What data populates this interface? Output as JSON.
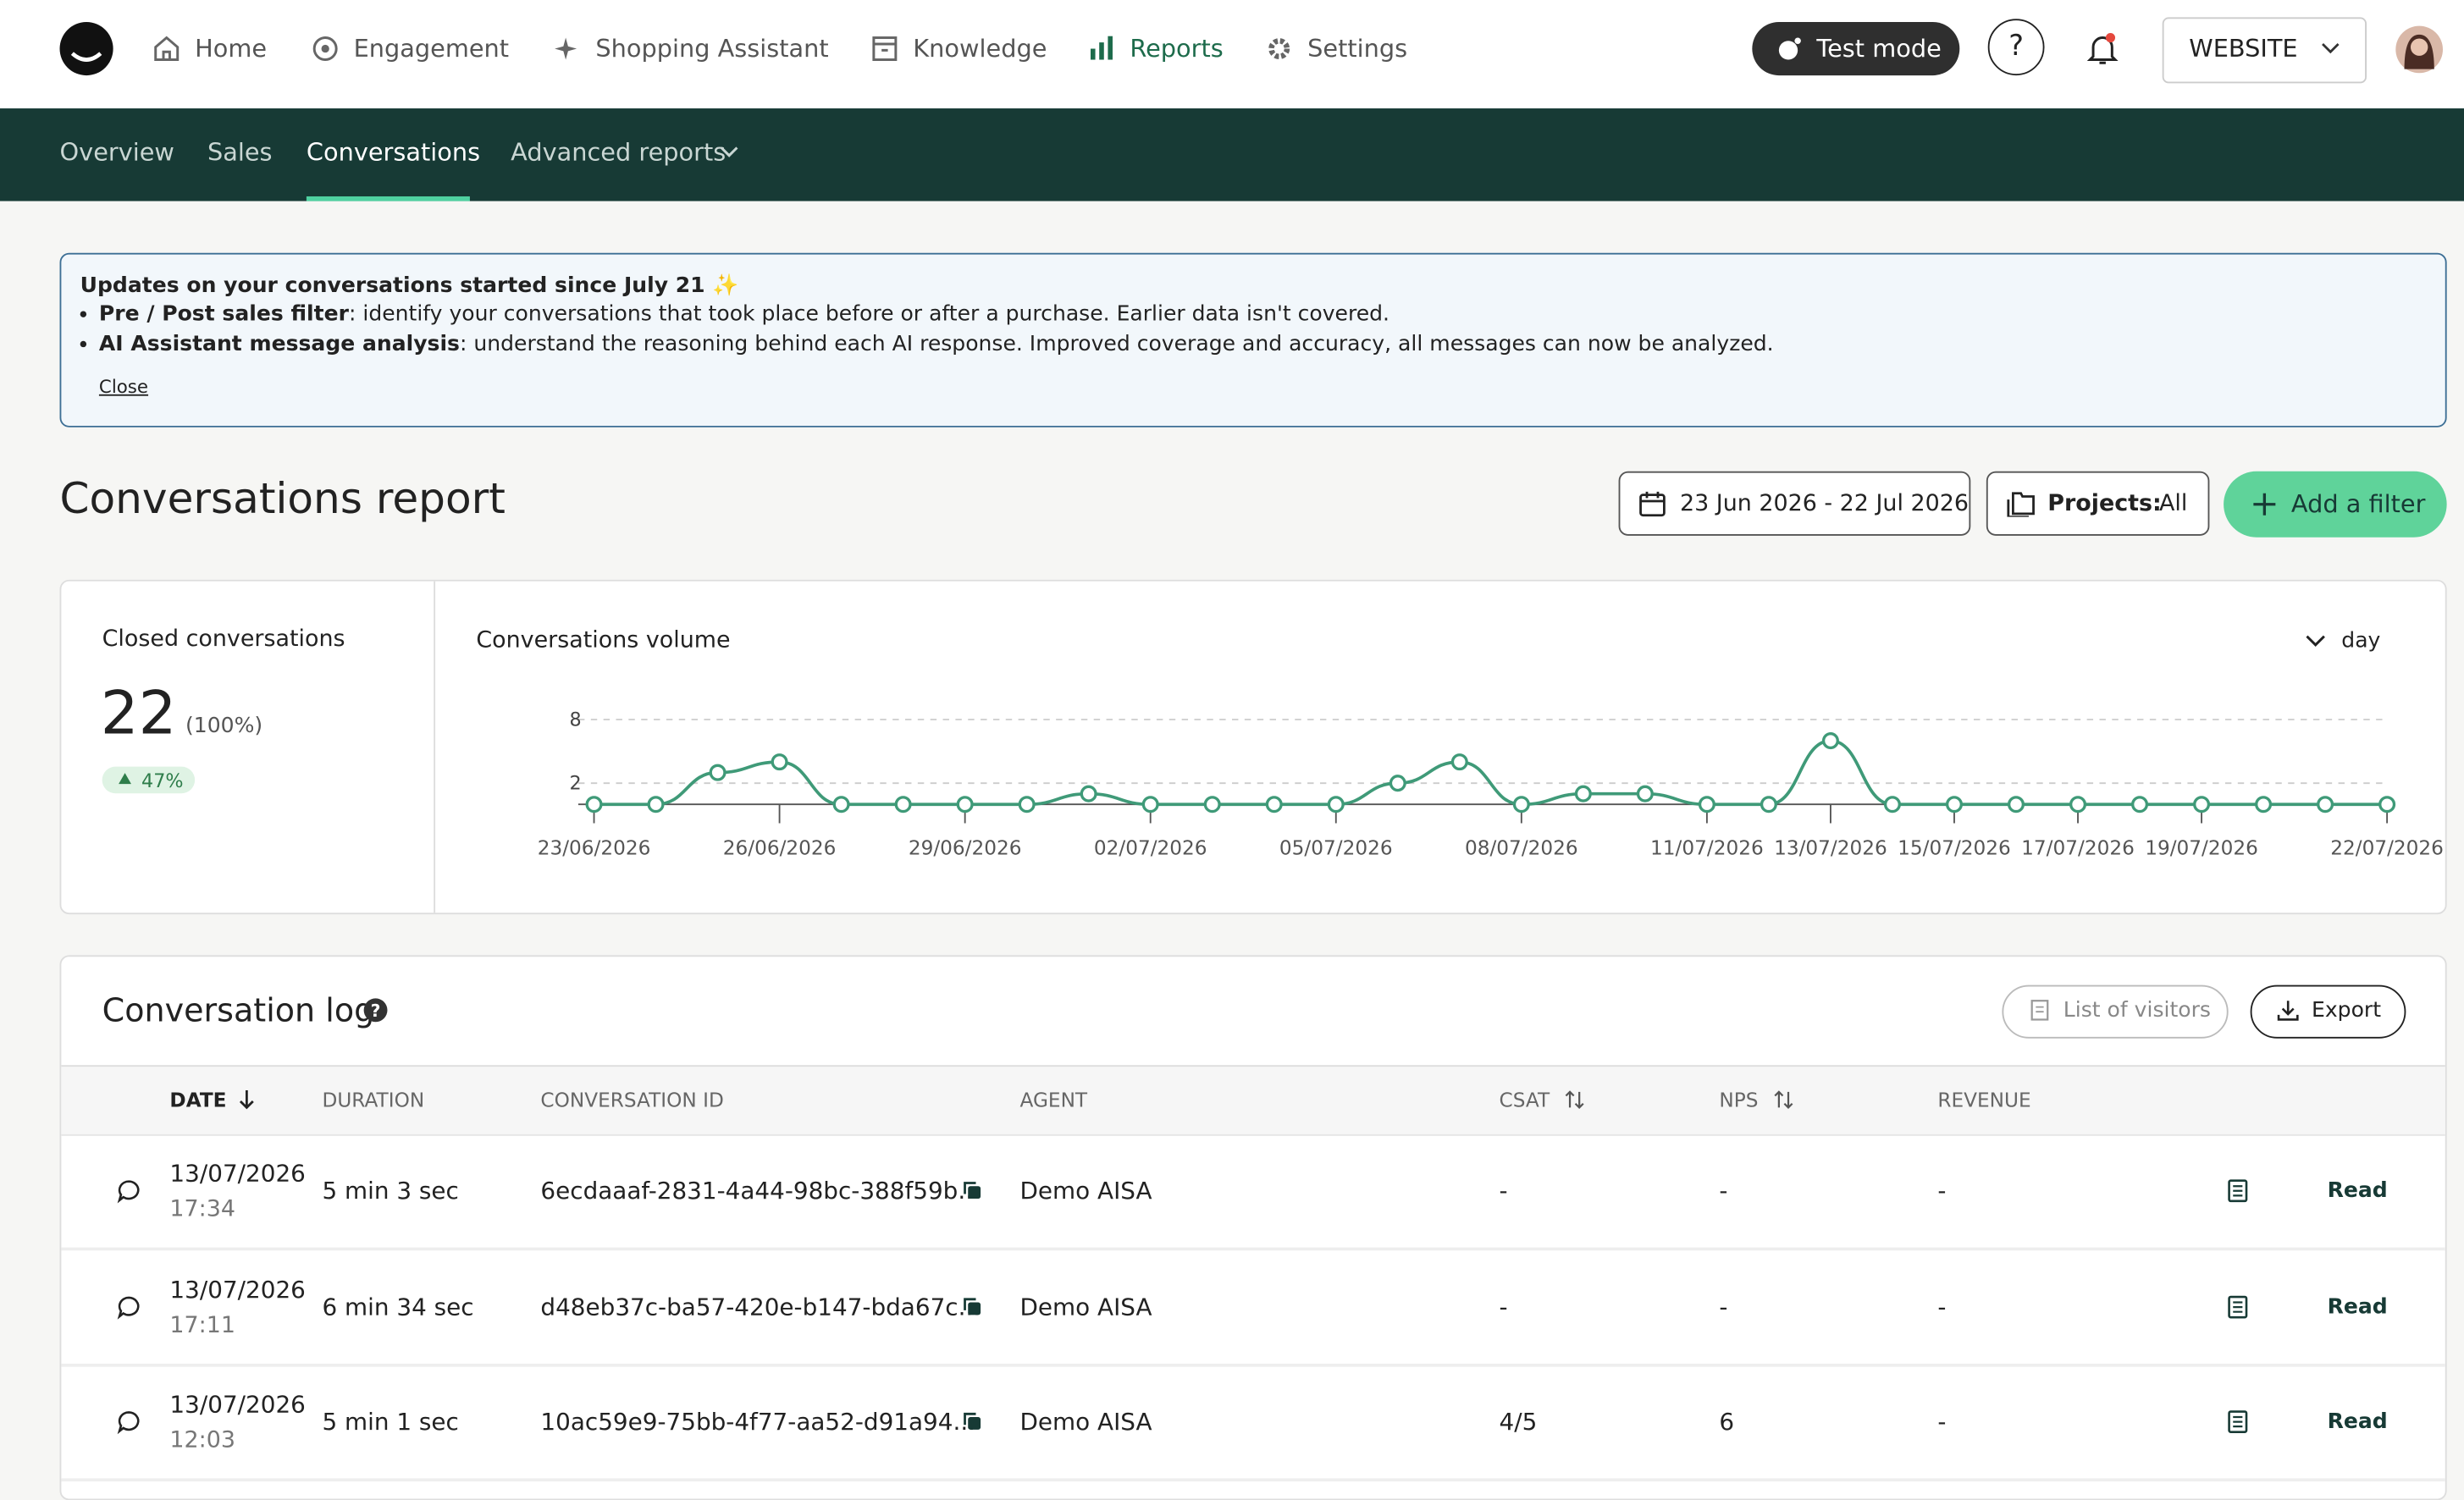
{
  "nav": {
    "items": [
      "Home",
      "Engagement",
      "Shopping Assistant",
      "Knowledge",
      "Reports",
      "Settings"
    ],
    "test_mode": "Test mode",
    "help": "?",
    "website": "WEBSITE"
  },
  "subnav": [
    "Overview",
    "Sales",
    "Conversations",
    "Advanced reports"
  ],
  "banner": {
    "title": "Updates on your conversations started since July 21 ✨",
    "items": [
      {
        "bold": "Pre / Post sales filter",
        "text": ": identify your conversations that took place before or after a purchase. Earlier data isn't covered."
      },
      {
        "bold": "AI Assistant message analysis",
        "text": ": understand the reasoning behind each AI response. Improved coverage and accuracy, all messages can now be analyzed."
      }
    ],
    "close": "Close"
  },
  "report": {
    "title": "Conversations report",
    "date_range": "23 Jun 2026 - 22 Jul 2026",
    "projects_label": "Projects:",
    "projects_value": "All",
    "add_filter": "Add a filter"
  },
  "stats": {
    "label": "Closed conversations",
    "value": 22,
    "percent": "(100%)",
    "change": "47%"
  },
  "chart_data": {
    "type": "line",
    "title": "Conversations volume",
    "interval": "day",
    "x": [
      "23/06/2026",
      null,
      null,
      "26/06/2026",
      null,
      null,
      "29/06/2026",
      null,
      null,
      "02/07/2026",
      null,
      null,
      "05/07/2026",
      null,
      null,
      "08/07/2026",
      null,
      null,
      "11/07/2026",
      null,
      "13/07/2026",
      null,
      "15/07/2026",
      null,
      "17/07/2026",
      null,
      "19/07/2026",
      null,
      null,
      "22/07/2026"
    ],
    "series": [
      {
        "color": "#3f9a78",
        "values": [
          0,
          0,
          3,
          4,
          0,
          0,
          0,
          0,
          1,
          0,
          0,
          0,
          0,
          2,
          4,
          0,
          1,
          1,
          0,
          0,
          6,
          0,
          0,
          0,
          0,
          0,
          0,
          0,
          0,
          0
        ]
      }
    ],
    "ylim": [
      0,
      8
    ],
    "yticks": [
      2,
      8
    ],
    "grid": true
  },
  "log": {
    "title": "Conversation log",
    "visitors": "List of visitors",
    "export": "Export",
    "columns": [
      "DATE",
      "DURATION",
      "CONVERSATION ID",
      "AGENT",
      "CSAT",
      "NPS",
      "REVENUE"
    ],
    "rows": [
      {
        "date": "13/07/2026",
        "time": "17:34",
        "duration": "5 min 3 sec",
        "id": "6ecdaaaf-2831-4a44-98bc-388f59b...",
        "agent": "Demo AISA",
        "csat": "-",
        "nps": "-",
        "revenue": "-",
        "action": "Read"
      },
      {
        "date": "13/07/2026",
        "time": "17:11",
        "duration": "6 min 34 sec",
        "id": "d48eb37c-ba57-420e-b147-bda67c...",
        "agent": "Demo AISA",
        "csat": "-",
        "nps": "-",
        "revenue": "-",
        "action": "Read"
      },
      {
        "date": "13/07/2026",
        "time": "12:03",
        "duration": "5 min 1 sec",
        "id": "10ac59e9-75bb-4f77-aa52-d91a94...",
        "agent": "Demo AISA",
        "csat": "4/5",
        "nps": "6",
        "revenue": "-",
        "action": "Read"
      }
    ]
  }
}
